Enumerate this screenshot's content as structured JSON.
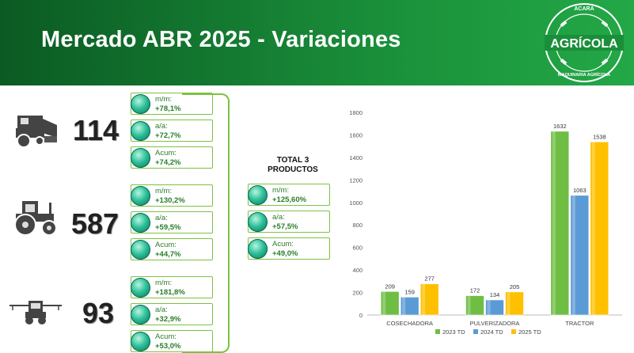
{
  "title": "Mercado ABR 2025 - Variaciones",
  "logo": {
    "top_text": "ACARA",
    "main_text": "AGRÍCOLA",
    "bottom_text": "MAQUINARIA AGRÍCOLA"
  },
  "products": [
    {
      "icon": "combine-harvester-icon",
      "value": "114",
      "metrics": [
        {
          "label": "m/m:",
          "value": "+78,1%"
        },
        {
          "label": "a/a:",
          "value": "+72,7%"
        },
        {
          "label": "Acum:",
          "value": "+74,2%"
        }
      ]
    },
    {
      "icon": "tractor-icon",
      "value": "587",
      "metrics": [
        {
          "label": "m/m:",
          "value": "+130,2%"
        },
        {
          "label": "a/a:",
          "value": "+59,5%"
        },
        {
          "label": "Acum:",
          "value": "+44,7%"
        }
      ]
    },
    {
      "icon": "sprayer-icon",
      "value": "93",
      "metrics": [
        {
          "label": "m/m:",
          "value": "+181,8%"
        },
        {
          "label": "a/a:",
          "value": "+32,9%"
        },
        {
          "label": "Acum:",
          "value": "+53,0%"
        }
      ]
    }
  ],
  "total": {
    "title_line1": "TOTAL 3",
    "title_line2": "PRODUCTOS",
    "metrics": [
      {
        "label": "m/m:",
        "value": "+125,60%"
      },
      {
        "label": "a/a:",
        "value": "+57,5%"
      },
      {
        "label": "Acum:",
        "value": "+49,0%"
      }
    ]
  },
  "colors": {
    "header_dark": "#0b5a23",
    "header_light": "#23a847",
    "chip_border": "#7cc242",
    "chip_text": "#2a7d2a",
    "ball": "#2bbf9a"
  },
  "chart_data": {
    "type": "bar",
    "categories": [
      "COSECHADORA",
      "PULVERIZADORA",
      "TRACTOR"
    ],
    "series": [
      {
        "name": "2023 TD",
        "values": [
          209,
          172,
          1632
        ],
        "color": "#6fbe44"
      },
      {
        "name": "2024 TD",
        "values": [
          159,
          134,
          1063
        ],
        "color": "#5b9bd5"
      },
      {
        "name": "2025 TD",
        "values": [
          277,
          205,
          1538
        ],
        "color": "#ffc000"
      }
    ],
    "ylim": [
      0,
      1800
    ],
    "yticks": [
      0,
      200,
      400,
      600,
      800,
      1000,
      1200,
      1400,
      1600,
      1800
    ],
    "grid": false,
    "legend": "bottom"
  }
}
